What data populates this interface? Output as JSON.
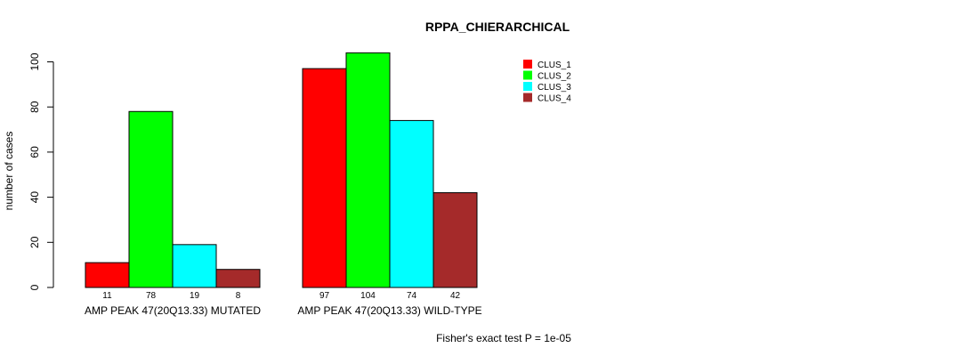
{
  "chart_data": {
    "type": "bar",
    "title": "RPPA_CHIERARCHICAL",
    "xlabel": "",
    "ylabel": "number of cases",
    "ylim": [
      0,
      105
    ],
    "yticks": [
      0,
      20,
      40,
      60,
      80,
      100
    ],
    "groups": [
      "AMP PEAK 47(20Q13.33) MUTATED",
      "AMP PEAK 47(20Q13.33) WILD-TYPE"
    ],
    "series": [
      {
        "name": "CLUS_1",
        "color": "#ff0000",
        "values": [
          11,
          97
        ]
      },
      {
        "name": "CLUS_2",
        "color": "#00ff00",
        "values": [
          78,
          104
        ]
      },
      {
        "name": "CLUS_3",
        "color": "#00ffff",
        "values": [
          19,
          74
        ]
      },
      {
        "name": "CLUS_4",
        "color": "#a52a2a",
        "values": [
          8,
          42
        ]
      }
    ],
    "legend_position": "top-right",
    "annotation": "Fisher's exact test P = 1e-05"
  }
}
